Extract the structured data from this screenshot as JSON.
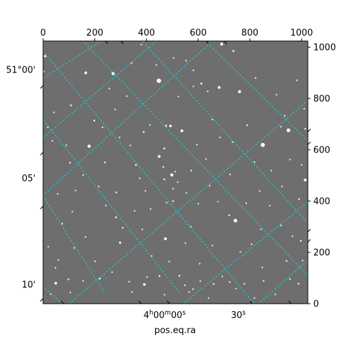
{
  "chart_data": {
    "type": "scatter",
    "title": "",
    "xlabel": "pos.eq.ra",
    "colors": {
      "background": "#6e6e6e",
      "grid": "#00e5e5",
      "stars": "#ffffff"
    },
    "pixel_axes": {
      "x": {
        "range": [
          0,
          1024
        ],
        "ticks": [
          0,
          200,
          400,
          600,
          800,
          1000
        ],
        "labels": [
          "0",
          "200",
          "400",
          "600",
          "800",
          "1000"
        ],
        "position": "top"
      },
      "y": {
        "range": [
          0,
          1024
        ],
        "ticks": [
          0,
          200,
          400,
          600,
          800,
          1000
        ],
        "labels": [
          "0",
          "200",
          "400",
          "600",
          "800",
          "1000"
        ],
        "position": "right"
      }
    },
    "world_axes": {
      "ra_labels": [
        {
          "text": "4h00m00s",
          "base": "4",
          "sup1": "h",
          "mid": "00",
          "sup2": "m",
          "tail": "00",
          "sup3": "s",
          "x": 470
        },
        {
          "text": "30s",
          "base": "30",
          "sup1": "s",
          "mid": "",
          "sup2": "",
          "tail": "",
          "sup3": "",
          "x": 755
        }
      ],
      "dec_labels": [
        {
          "text": "51°00'",
          "y": 912
        },
        {
          "text": "05'",
          "y": 490
        },
        {
          "text": "10'",
          "y": 75
        }
      ]
    },
    "grid": true,
    "stars": [
      [
        8,
        965,
        1.6
      ],
      [
        3,
        905,
        1.2
      ],
      [
        165,
        900,
        2.0
      ],
      [
        271,
        897,
        2.4
      ],
      [
        448,
        869,
        3.2
      ],
      [
        691,
        1012,
        2.2
      ],
      [
        736,
        985,
        1.5
      ],
      [
        380,
        1010,
        1.2
      ],
      [
        505,
        958,
        1.2
      ],
      [
        553,
        948,
        1.2
      ],
      [
        612,
        858,
        1.5
      ],
      [
        681,
        843,
        2.0
      ],
      [
        760,
        827,
        2.2
      ],
      [
        637,
        828,
        1.2
      ],
      [
        581,
        847,
        1.1
      ],
      [
        523,
        808,
        1.1
      ],
      [
        108,
        773,
        1.4
      ],
      [
        198,
        714,
        1.4
      ],
      [
        279,
        757,
        1.2
      ],
      [
        413,
        697,
        1.2
      ],
      [
        389,
        669,
        1.4
      ],
      [
        476,
        694,
        1.5
      ],
      [
        493,
        693,
        1.8
      ],
      [
        537,
        674,
        2.1
      ],
      [
        655,
        718,
        1.2
      ],
      [
        789,
        696,
        1.3
      ],
      [
        850,
        619,
        3.0
      ],
      [
        949,
        676,
        2.7
      ],
      [
        1014,
        682,
        1.3
      ],
      [
        935,
        733,
        1.2
      ],
      [
        178,
        614,
        2.3
      ],
      [
        104,
        550,
        1.3
      ],
      [
        239,
        551,
        1.3
      ],
      [
        449,
        574,
        2.0
      ],
      [
        469,
        605,
        1.5
      ],
      [
        359,
        541,
        1.4
      ],
      [
        374,
        489,
        1.2
      ],
      [
        465,
        533,
        1.3
      ],
      [
        469,
        485,
        1.3
      ],
      [
        498,
        502,
        2.3
      ],
      [
        511,
        515,
        1.2
      ],
      [
        521,
        474,
        1.2
      ],
      [
        503,
        448,
        1.2
      ],
      [
        573,
        519,
        1.3
      ],
      [
        630,
        564,
        1.2
      ],
      [
        723,
        504,
        1.2
      ],
      [
        818,
        552,
        1.2
      ],
      [
        883,
        519,
        1.2
      ],
      [
        924,
        457,
        1.2
      ],
      [
        990,
        408,
        1.3
      ],
      [
        1014,
        482,
        2.0
      ],
      [
        1000,
        541,
        1.2
      ],
      [
        955,
        562,
        1.2
      ],
      [
        838,
        439,
        1.2
      ],
      [
        786,
        392,
        1.2
      ],
      [
        676,
        398,
        1.1
      ],
      [
        744,
        324,
        2.6
      ],
      [
        720,
        345,
        1.3
      ],
      [
        600,
        390,
        1.2
      ],
      [
        554,
        432,
        1.2
      ],
      [
        503,
        400,
        1.3
      ],
      [
        354,
        362,
        1.2
      ],
      [
        282,
        337,
        1.4
      ],
      [
        308,
        296,
        1.3
      ],
      [
        416,
        369,
        1.2
      ],
      [
        478,
        394,
        1.2
      ],
      [
        298,
        238,
        1.6
      ],
      [
        473,
        253,
        2.1
      ],
      [
        420,
        186,
        1.2
      ],
      [
        488,
        164,
        1.2
      ],
      [
        606,
        156,
        1.2
      ],
      [
        655,
        227,
        1.2
      ],
      [
        763,
        202,
        1.2
      ],
      [
        807,
        232,
        1.2
      ],
      [
        848,
        141,
        1.2
      ],
      [
        942,
        167,
        1.3
      ],
      [
        997,
        245,
        1.3
      ],
      [
        965,
        263,
        1.2
      ],
      [
        1004,
        168,
        1.2
      ],
      [
        853,
        89,
        1.2
      ],
      [
        779,
        77,
        1.2
      ],
      [
        722,
        84,
        1.2
      ],
      [
        660,
        77,
        1.3
      ],
      [
        608,
        88,
        1.2
      ],
      [
        580,
        57,
        1.2
      ],
      [
        548,
        72,
        1.2
      ],
      [
        527,
        109,
        1.3
      ],
      [
        565,
        46,
        1.2
      ],
      [
        450,
        108,
        1.4
      ],
      [
        392,
        75,
        1.9
      ],
      [
        333,
        86,
        1.2
      ],
      [
        219,
        98,
        1.5
      ],
      [
        155,
        89,
        1.2
      ],
      [
        98,
        95,
        1.3
      ],
      [
        49,
        80,
        1.9
      ],
      [
        48,
        140,
        1.2
      ],
      [
        20,
        222,
        1.2
      ],
      [
        164,
        260,
        1.2
      ],
      [
        201,
        165,
        1.2
      ],
      [
        267,
        123,
        1.2
      ],
      [
        344,
        45,
        1.2
      ],
      [
        402,
        104,
        1.2
      ],
      [
        693,
        106,
        1.2
      ],
      [
        746,
        59,
        1.1
      ],
      [
        955,
        96,
        1.2
      ],
      [
        988,
        78,
        1.3
      ],
      [
        898,
        36,
        1.2
      ],
      [
        818,
        22,
        1.2
      ],
      [
        640,
        22,
        1.2
      ],
      [
        470,
        35,
        1.2
      ],
      [
        105,
        44,
        1.2
      ],
      [
        59,
        170,
        1.2
      ],
      [
        74,
        312,
        1.2
      ],
      [
        113,
        359,
        1.2
      ],
      [
        57,
        428,
        1.2
      ],
      [
        215,
        457,
        1.2
      ],
      [
        283,
        434,
        1.3
      ],
      [
        243,
        383,
        1.2
      ],
      [
        155,
        501,
        1.2
      ],
      [
        90,
        618,
        1.2
      ],
      [
        18,
        688,
        1.2
      ],
      [
        42,
        746,
        1.2
      ],
      [
        256,
        839,
        1.2
      ],
      [
        324,
        809,
        1.2
      ],
      [
        343,
        938,
        1.2
      ],
      [
        438,
        931,
        1.2
      ],
      [
        581,
        910,
        1.2
      ],
      [
        822,
        880,
        1.2
      ],
      [
        903,
        815,
        1.2
      ],
      [
        982,
        871,
        1.2
      ],
      [
        1010,
        760,
        1.2
      ],
      [
        920,
        690,
        1.2
      ],
      [
        733,
        630,
        1.2
      ],
      [
        684,
        648,
        1.2
      ],
      [
        595,
        620,
        1.2
      ],
      [
        337,
        617,
        1.2
      ],
      [
        296,
        648,
        1.2
      ],
      [
        230,
        688,
        1.2
      ],
      [
        36,
        635,
        1.2
      ],
      [
        126,
        441,
        1.2
      ],
      [
        396,
        440,
        1.2
      ],
      [
        644,
        460,
        1.2
      ],
      [
        877,
        382,
        1.2
      ],
      [
        920,
        305,
        1.2
      ],
      [
        843,
        290,
        1.2
      ],
      [
        571,
        300,
        1.2
      ],
      [
        551,
        236,
        1.2
      ],
      [
        384,
        290,
        1.2
      ],
      [
        120,
        217,
        1.2
      ],
      [
        30,
        37,
        1.2
      ]
    ]
  }
}
